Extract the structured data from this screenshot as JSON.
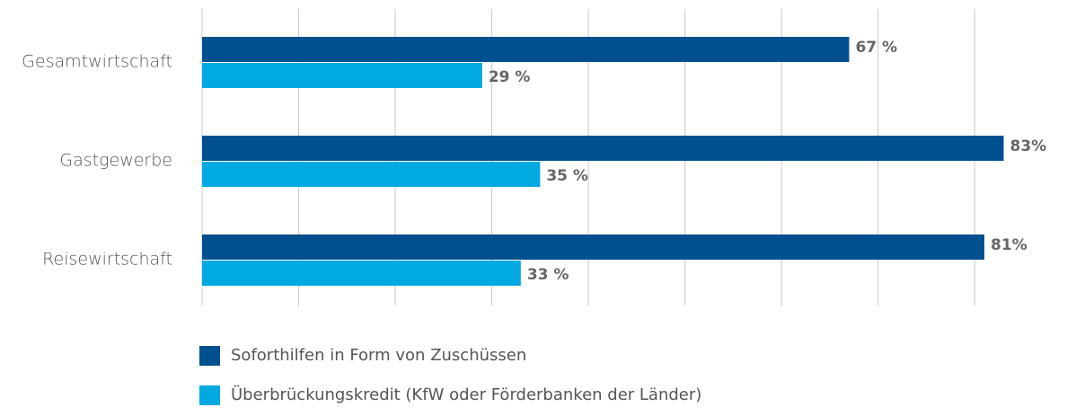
{
  "chart_data": {
    "type": "hbar",
    "categories": [
      "Gesamtwirtschaft",
      "Gastgewerbe",
      "Reisewirtschaft"
    ],
    "series": [
      {
        "name": "Soforthilfen in Form von Zuschüssen",
        "color": "#004f8f",
        "values": [
          67,
          83,
          81
        ],
        "value_labels": [
          "67 %",
          "83%",
          "81%"
        ]
      },
      {
        "name": "Überbrückungskredit (KfW oder Förderbanken der Länder)",
        "color": "#00a9e0",
        "values": [
          29,
          35,
          33
        ],
        "value_labels": [
          "29 %",
          "35 %",
          "33 %"
        ]
      }
    ],
    "xlim": [
      0,
      85
    ],
    "xticks": [
      0,
      10,
      20,
      30,
      40,
      50,
      60,
      70,
      80
    ],
    "grid": true,
    "legend": "bottom"
  }
}
